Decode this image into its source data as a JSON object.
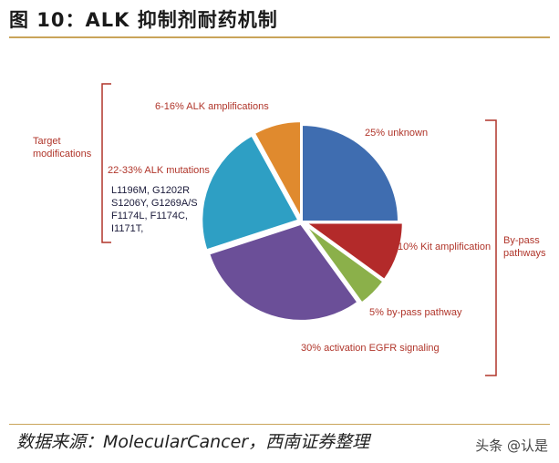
{
  "title": "图 10：ALK 抑制剂耐药机制",
  "source": "数据来源：MolecularCancer，西南证券整理",
  "watermark": "头条 @认是",
  "chart_data": {
    "type": "pie",
    "slices": [
      {
        "label": "25% unknown",
        "value": 25,
        "color": "#3f6db0"
      },
      {
        "label": "10% Kit amplification",
        "value": 10,
        "color": "#b32a2a"
      },
      {
        "label": "5% by-pass pathway",
        "value": 5,
        "color": "#8bb04a"
      },
      {
        "label": "30% activation EGFR signaling",
        "value": 30,
        "color": "#6b4f98"
      },
      {
        "label": "22-33% ALK mutations",
        "value": 22,
        "color": "#2e9fc4"
      },
      {
        "label": "6-16% ALK amplifications",
        "value": 8,
        "color": "#e08a2e"
      }
    ],
    "mutation_list": [
      "L1196M, G1202R",
      "S1206Y, G1269A/S",
      "F1174L, F1174C,",
      "I1171T,"
    ],
    "groups": [
      {
        "label_lines": [
          "Target",
          "modifications"
        ]
      },
      {
        "label_lines": [
          "By-pass",
          "pathways"
        ]
      }
    ]
  }
}
